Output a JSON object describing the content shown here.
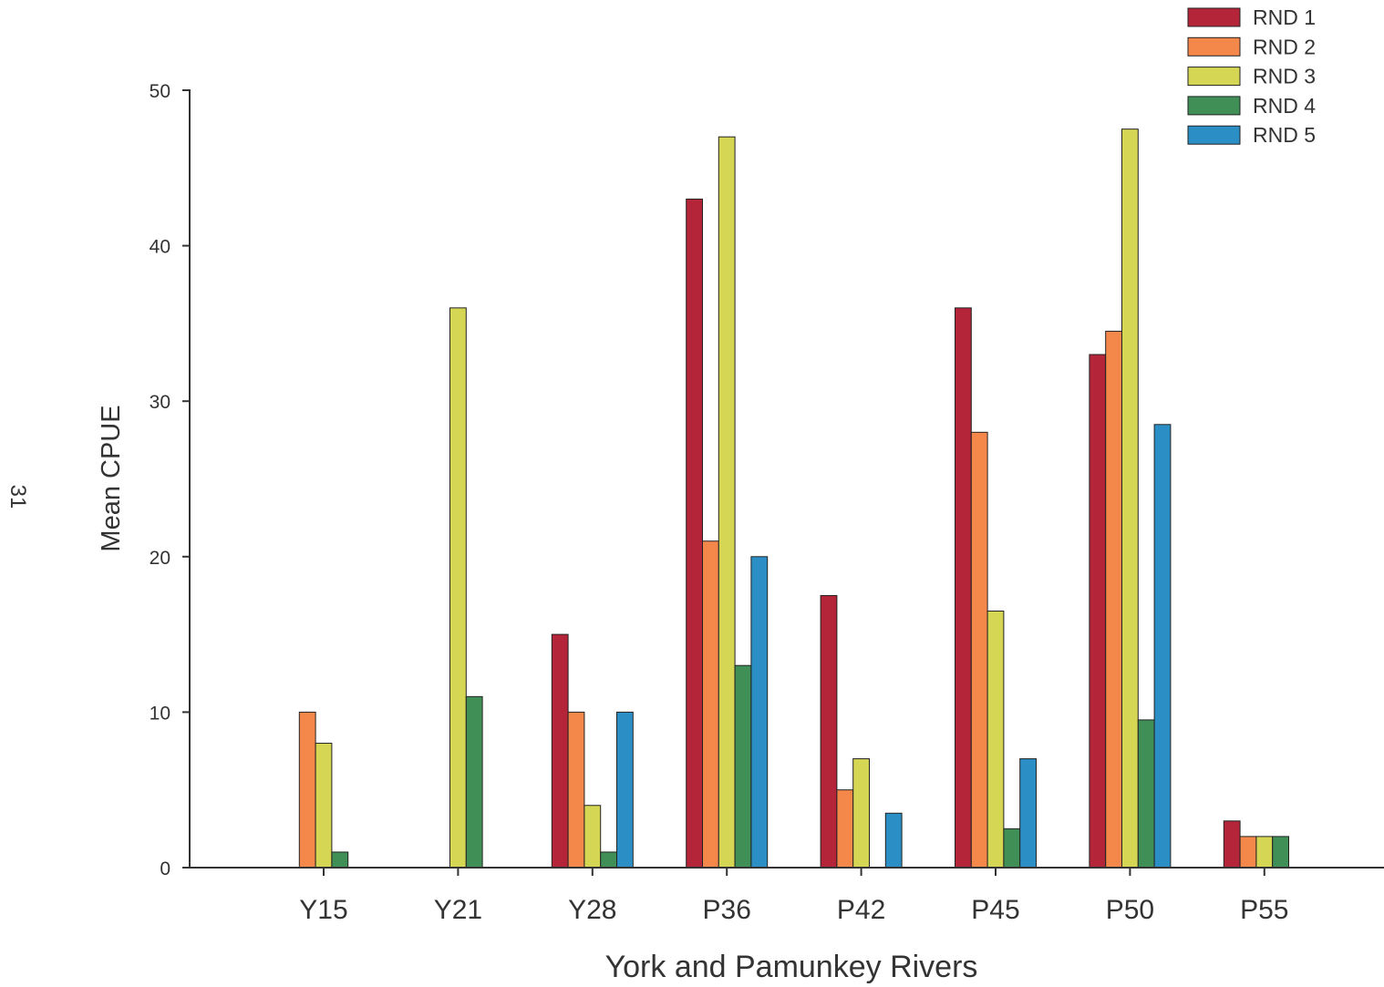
{
  "page_number": "31",
  "chart_data": {
    "type": "bar",
    "title": "",
    "xlabel": "York and Pamunkey Rivers",
    "ylabel": "Mean CPUE",
    "ylim": [
      0,
      50
    ],
    "yticks": [
      0,
      10,
      20,
      30,
      40,
      50
    ],
    "grid": false,
    "legend_position": "top-right",
    "categories": [
      "Y15",
      "Y21",
      "Y28",
      "P36",
      "P42",
      "P45",
      "P50",
      "P55"
    ],
    "series": [
      {
        "name": "RND 1",
        "color": "#b5253a",
        "values": [
          0,
          0,
          15,
          43,
          17.5,
          36,
          33,
          3
        ]
      },
      {
        "name": "RND 2",
        "color": "#f4874a",
        "values": [
          10,
          0,
          10,
          21,
          5,
          28,
          34.5,
          2
        ]
      },
      {
        "name": "RND 3",
        "color": "#d6d655",
        "values": [
          8,
          36,
          4,
          47,
          7,
          16.5,
          47.5,
          2
        ]
      },
      {
        "name": "RND 4",
        "color": "#3f8f56",
        "values": [
          1,
          11,
          1,
          13,
          0,
          2.5,
          9.5,
          2
        ]
      },
      {
        "name": "RND 5",
        "color": "#2b8fc6",
        "values": [
          0,
          0,
          10,
          20,
          3.5,
          7,
          28.5,
          0
        ]
      }
    ]
  }
}
